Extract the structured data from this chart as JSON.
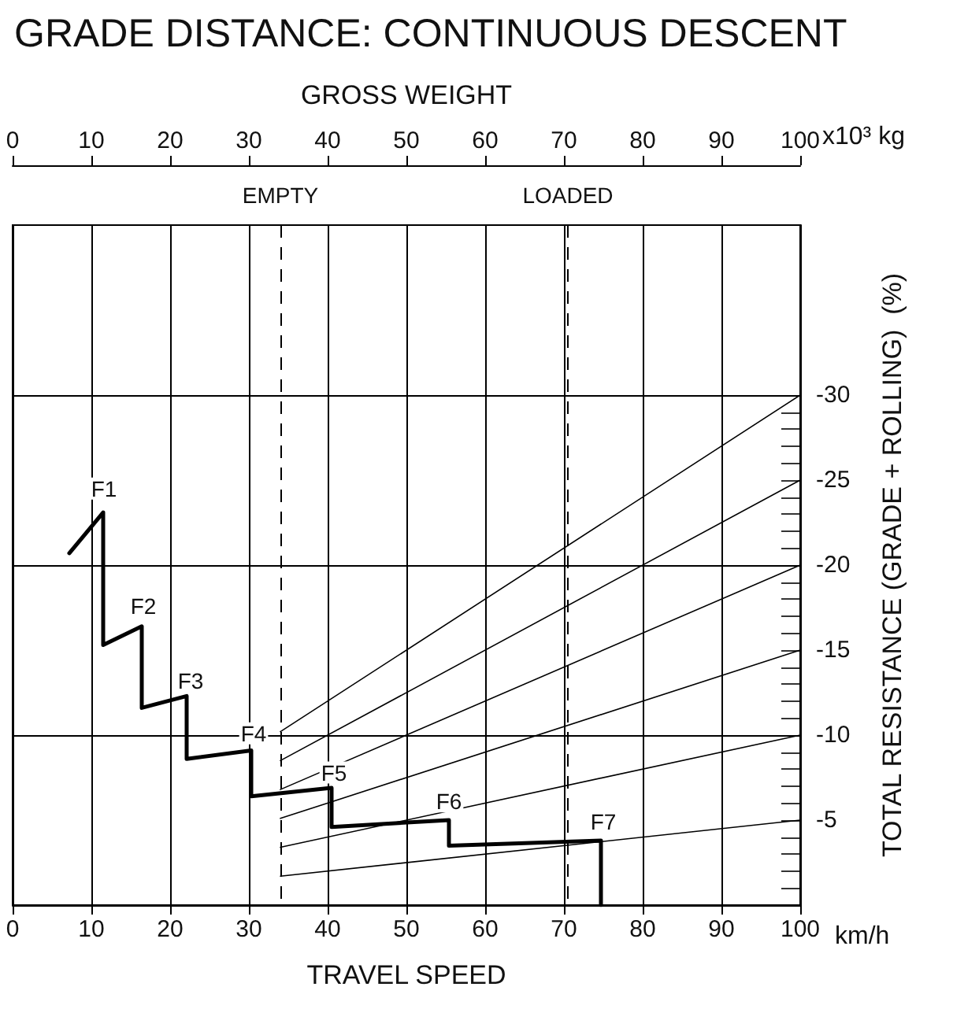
{
  "chart_data": {
    "type": "line",
    "title": "GRADE DISTANCE: CONTINUOUS DESCENT",
    "xlabel": "TRAVEL SPEED",
    "x2label": "GROSS WEIGHT",
    "ylabel": "TOTAL RESISTANCE (GRADE + ROLLING)  (%)",
    "xlim": [
      0,
      100
    ],
    "xticks": [
      0,
      10,
      20,
      30,
      40,
      50,
      60,
      70,
      80,
      90,
      100
    ],
    "x2lim": [
      0,
      100
    ],
    "x2ticks": [
      0,
      10,
      20,
      30,
      40,
      50,
      60,
      70,
      80,
      90,
      100
    ],
    "ylim": [
      0,
      -40
    ],
    "yticks": [
      {
        "value": -1,
        "label": null
      },
      {
        "value": -2,
        "label": null
      },
      {
        "value": -3,
        "label": null
      },
      {
        "value": -4,
        "label": null
      },
      -5,
      {
        "value": -6,
        "label": null
      },
      {
        "value": -7,
        "label": null
      },
      {
        "value": -8,
        "label": null
      },
      {
        "value": -9,
        "label": null
      },
      -10,
      {
        "value": -11,
        "label": null
      },
      {
        "value": -12,
        "label": null
      },
      {
        "value": -13,
        "label": null
      },
      {
        "value": -14,
        "label": null
      },
      -15,
      {
        "value": -16,
        "label": null
      },
      {
        "value": -17,
        "label": null
      },
      {
        "value": -18,
        "label": null
      },
      {
        "value": -19,
        "label": null
      },
      -20,
      {
        "value": -21,
        "label": null
      },
      {
        "value": -22,
        "label": null
      },
      {
        "value": -23,
        "label": null
      },
      {
        "value": -24,
        "label": null
      },
      -25,
      {
        "value": -26,
        "label": null
      },
      {
        "value": -27,
        "label": null
      },
      {
        "value": -28,
        "label": null
      },
      {
        "value": -29,
        "label": null
      },
      -30
    ],
    "grid": "x",
    "marker": "none",
    "line_style": "solid",
    "series": [
      {
        "color": "#000000",
        "x": [
          7.2,
          11.5,
          11.5,
          16.4,
          16.4,
          22.1,
          22.1,
          30.3,
          30.3,
          40.5,
          40.5,
          55.4,
          55.4,
          74.7,
          74.7
        ],
        "values": [
          -20.7,
          -23.1,
          -15.3,
          -16.4,
          -11.6,
          -12.3,
          -8.6,
          -9.1,
          -6.4,
          -6.9,
          -4.6,
          -5,
          -3.5,
          -3.8,
          0
        ]
      },
      {
        "color": "#000000",
        "x": [
          34,
          100
        ],
        "values": [
          -10.2,
          -30
        ]
      },
      {
        "color": "#000000",
        "x": [
          34,
          100
        ],
        "values": [
          -8.5,
          -25
        ]
      },
      {
        "color": "#000000",
        "x": [
          34,
          100
        ],
        "values": [
          -6.8,
          -20
        ]
      },
      {
        "color": "#000000",
        "x": [
          34,
          100
        ],
        "values": [
          -5.1,
          -15
        ]
      },
      {
        "color": "#000000",
        "x": [
          34,
          100
        ],
        "values": [
          -3.4,
          -10
        ]
      },
      {
        "color": "#000000",
        "x": [
          34,
          100
        ],
        "values": [
          -1.7,
          -5
        ]
      }
    ],
    "ref_lines": [
      {
        "axis": "x",
        "value": 34,
        "label": "EMPTY",
        "line_style": "dashed",
        "color": "#000000"
      },
      {
        "axis": "x",
        "value": 70.5,
        "label": "LOADED",
        "line_style": "dashed",
        "color": "#000000"
      },
      {
        "axis": "y",
        "value": -10,
        "label": null,
        "color": "#000000"
      },
      {
        "axis": "y",
        "value": -20,
        "label": null,
        "color": "#000000"
      },
      {
        "axis": "y",
        "value": -30,
        "label": null,
        "color": "#000000"
      }
    ],
    "annotations": [
      {
        "text": "F1",
        "x": 11.6,
        "y": -24.5
      },
      {
        "text": "F2",
        "x": 16.6,
        "y": -17.6
      },
      {
        "text": "F3",
        "x": 22.6,
        "y": -13.2
      },
      {
        "text": "F4",
        "x": 30.6,
        "y": -10.1
      },
      {
        "text": "F5",
        "x": 40.8,
        "y": -7.8
      },
      {
        "text": "F6",
        "x": 55.4,
        "y": -6.1
      },
      {
        "text": "F7",
        "x": 75,
        "y": -4.9
      },
      "x10³ kg",
      "km/h"
    ]
  }
}
